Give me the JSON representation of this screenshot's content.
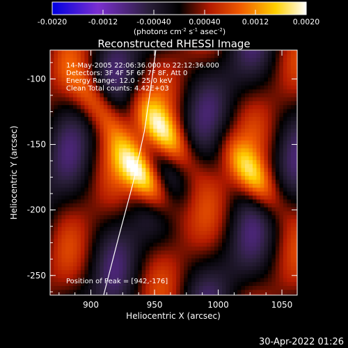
{
  "colorbar": {
    "ticks": [
      "-0.0020",
      "-0.0012",
      "-0.00040",
      "0.00040",
      "0.0012",
      "0.0020"
    ],
    "units_label_parts": [
      "(photons cm",
      "-2",
      " s",
      "-1",
      " asec",
      "-2",
      ")"
    ],
    "range": [
      -0.002,
      0.002
    ],
    "colors": [
      "#0000e0",
      "#7b2fd0",
      "#2a1f3a",
      "#000000",
      "#b21a00",
      "#f05a00",
      "#ffd000",
      "#ffffff"
    ]
  },
  "chart_data": {
    "type": "heatmap",
    "title": "Reconstructed RHESSI Image",
    "xlabel": "Heliocentric X (arcsec)",
    "ylabel": "Heliocentric Y (arcsec)",
    "xlim": [
      868,
      1062
    ],
    "ylim": [
      -265,
      -78
    ],
    "x_ticks": [
      900,
      950,
      1000,
      1050
    ],
    "y_ticks": [
      -250,
      -200,
      -150,
      -100
    ],
    "info_lines": [
      "14-May-2005 22:06:36.000 to 22:12:36.000",
      "Detectors: 3F 4F 5F 6F 7F 8F, Att 0",
      "Energy Range: 12.0 - 25.0 keV",
      "Clean    Total counts: 4.42E+03"
    ],
    "peak_label": "Position of Peak = [942,-176]",
    "peak": [
      942,
      -176
    ],
    "sources": [
      {
        "x": 942,
        "y": -176,
        "amplitude": 0.002
      },
      {
        "x": 958,
        "y": -142,
        "amplitude": 0.0016
      },
      {
        "x": 1028,
        "y": -175,
        "amplitude": 0.0014
      },
      {
        "x": 905,
        "y": -120,
        "amplitude": 0.0011
      }
    ],
    "limb_curve": [
      [
        910,
        -265
      ],
      [
        922,
        -220
      ],
      [
        933,
        -180
      ],
      [
        942,
        -140
      ],
      [
        948,
        -100
      ],
      [
        951,
        -78
      ]
    ]
  },
  "footer": {
    "timestamp": "30-Apr-2022 01:26"
  }
}
